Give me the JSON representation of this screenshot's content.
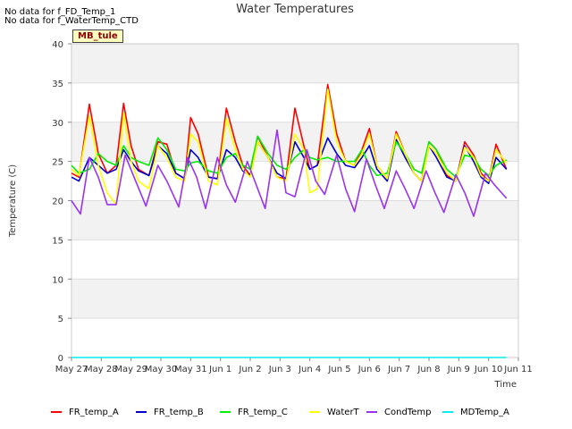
{
  "notes": [
    "No data for f_FD_Temp_1",
    "No data for f_WaterTemp_CTD"
  ],
  "badge": "MB_tule",
  "chart_data": {
    "type": "line",
    "title": "Water Temperatures",
    "xlabel": "Time",
    "ylabel": "Temperature (C)",
    "ylim": [
      0,
      40
    ],
    "xlim": [
      0,
      15
    ],
    "x_ticks": [
      0,
      1,
      2,
      3,
      4,
      5,
      6,
      7,
      8,
      9,
      10,
      11,
      12,
      13,
      14,
      15
    ],
    "x_tick_labels": [
      "May 27",
      "May 28",
      "May 29",
      "May 30",
      "May 31",
      "Jun 1",
      "Jun 2",
      "Jun 3",
      "Jun 4",
      "Jun 5",
      "Jun 6",
      "Jun 7",
      "Jun 8",
      "Jun 9",
      "Jun 10",
      "Jun 11"
    ],
    "y_ticks": [
      0,
      5,
      10,
      15,
      20,
      25,
      30,
      35,
      40
    ],
    "grid": true,
    "legend_position": "bottom",
    "x_unit": "days since May 27",
    "series": [
      {
        "name": "FR_temp_A",
        "color": "#ff0000",
        "x": [
          0.0,
          0.25,
          0.6,
          0.9,
          1.2,
          1.5,
          1.75,
          2.0,
          2.25,
          2.6,
          2.9,
          3.2,
          3.5,
          3.8,
          4.0,
          4.25,
          4.6,
          4.9,
          5.2,
          5.5,
          5.75,
          6.0,
          6.25,
          6.6,
          6.9,
          7.2,
          7.5,
          7.8,
          8.0,
          8.25,
          8.6,
          8.9,
          9.2,
          9.5,
          9.75,
          10.0,
          10.25,
          10.6,
          10.9,
          11.2,
          11.5,
          11.75,
          12.0,
          12.25,
          12.6,
          12.9,
          13.2,
          13.5,
          13.75,
          14.0,
          14.25,
          14.6
        ],
        "y": [
          23.5,
          23.0,
          32.3,
          26.0,
          23.5,
          24.5,
          32.4,
          27.0,
          24.0,
          23.2,
          27.5,
          27.2,
          23.5,
          22.8,
          30.6,
          28.5,
          23.0,
          22.8,
          31.8,
          27.5,
          24.5,
          23.2,
          28.2,
          25.5,
          23.0,
          22.8,
          31.8,
          27.0,
          24.0,
          24.5,
          34.8,
          28.5,
          25.0,
          24.5,
          26.5,
          29.2,
          24.5,
          22.8,
          28.8,
          26.0,
          23.5,
          22.5,
          27.5,
          26.5,
          23.2,
          22.5,
          27.5,
          25.8,
          23.5,
          22.5,
          27.2,
          24.0
        ]
      },
      {
        "name": "FR_temp_B",
        "color": "#0000cc",
        "x": [
          0.0,
          0.25,
          0.6,
          0.9,
          1.2,
          1.5,
          1.75,
          2.0,
          2.25,
          2.6,
          2.9,
          3.2,
          3.5,
          3.8,
          4.0,
          4.25,
          4.6,
          4.9,
          5.2,
          5.5,
          5.75,
          6.0,
          6.25,
          6.6,
          6.9,
          7.2,
          7.5,
          7.8,
          8.0,
          8.25,
          8.6,
          8.9,
          9.2,
          9.5,
          9.75,
          10.0,
          10.25,
          10.6,
          10.9,
          11.2,
          11.5,
          11.75,
          12.0,
          12.25,
          12.6,
          12.9,
          13.2,
          13.5,
          13.75,
          14.0,
          14.25,
          14.6
        ],
        "y": [
          23.0,
          22.5,
          25.5,
          24.5,
          23.5,
          24.0,
          26.5,
          25.0,
          23.8,
          23.2,
          27.0,
          26.0,
          23.5,
          22.8,
          26.5,
          25.5,
          23.0,
          22.8,
          26.5,
          25.5,
          23.8,
          23.2,
          27.5,
          25.5,
          23.5,
          22.8,
          27.5,
          25.5,
          24.0,
          24.5,
          28.0,
          26.0,
          24.5,
          24.2,
          25.5,
          27.0,
          24.0,
          22.5,
          27.8,
          25.5,
          23.5,
          22.5,
          27.0,
          25.5,
          23.0,
          22.5,
          27.0,
          25.0,
          23.0,
          22.2,
          25.5,
          24.0
        ]
      },
      {
        "name": "FR_temp_C",
        "color": "#00ee00",
        "x": [
          0.0,
          0.25,
          0.6,
          0.9,
          1.2,
          1.5,
          1.75,
          2.0,
          2.25,
          2.6,
          2.9,
          3.2,
          3.5,
          3.8,
          4.0,
          4.25,
          4.6,
          4.9,
          5.2,
          5.5,
          5.75,
          6.0,
          6.25,
          6.6,
          6.9,
          7.2,
          7.5,
          7.8,
          8.0,
          8.25,
          8.6,
          8.9,
          9.2,
          9.5,
          9.75,
          10.0,
          10.25,
          10.6,
          10.9,
          11.2,
          11.5,
          11.75,
          12.0,
          12.25,
          12.6,
          12.9,
          13.2,
          13.5,
          13.75,
          14.0,
          14.25,
          14.6
        ],
        "y": [
          24.5,
          23.5,
          24.0,
          26.0,
          25.0,
          24.5,
          27.0,
          25.5,
          25.0,
          24.5,
          28.0,
          26.5,
          24.0,
          23.8,
          24.8,
          25.0,
          23.8,
          23.5,
          25.5,
          26.0,
          24.5,
          24.0,
          28.2,
          26.0,
          24.5,
          24.0,
          25.5,
          26.5,
          25.5,
          25.2,
          25.5,
          25.0,
          25.0,
          25.0,
          26.5,
          24.5,
          23.2,
          23.5,
          27.5,
          26.0,
          24.0,
          23.5,
          27.5,
          26.5,
          24.0,
          23.0,
          25.8,
          25.5,
          24.0,
          23.2,
          24.5,
          25.2
        ]
      },
      {
        "name": "WaterT",
        "color": "#ffff00",
        "x": [
          0.0,
          0.25,
          0.6,
          0.9,
          1.2,
          1.5,
          1.75,
          2.0,
          2.25,
          2.6,
          2.9,
          3.2,
          3.5,
          3.8,
          4.0,
          4.25,
          4.6,
          4.9,
          5.2,
          5.5,
          5.75,
          6.0,
          6.25,
          6.6,
          6.9,
          7.2,
          7.5,
          7.8,
          8.0,
          8.25,
          8.6,
          8.9,
          9.2,
          9.5,
          9.75,
          10.0,
          10.25,
          10.6,
          10.9,
          11.2,
          11.5,
          11.75,
          12.0,
          12.25,
          12.6,
          12.9,
          13.2,
          13.5,
          13.75,
          14.0,
          14.25,
          14.6
        ],
        "y": [
          24.0,
          23.2,
          30.8,
          24.5,
          21.0,
          19.5,
          31.2,
          25.0,
          22.5,
          21.5,
          27.0,
          25.5,
          23.0,
          22.5,
          28.5,
          27.5,
          22.5,
          22.0,
          30.5,
          26.5,
          24.0,
          23.0,
          27.5,
          25.5,
          23.0,
          22.5,
          28.5,
          26.5,
          21.0,
          21.5,
          34.2,
          27.5,
          25.0,
          24.5,
          26.0,
          28.5,
          24.5,
          22.8,
          28.5,
          26.0,
          23.5,
          22.5,
          27.0,
          26.0,
          23.5,
          22.5,
          26.8,
          25.5,
          23.2,
          22.5,
          26.5,
          24.8
        ]
      },
      {
        "name": "CondTemp",
        "color": "#9933ee",
        "x": [
          0.0,
          0.3,
          0.6,
          0.9,
          1.2,
          1.5,
          1.8,
          2.1,
          2.5,
          2.9,
          3.2,
          3.6,
          3.9,
          4.2,
          4.5,
          4.9,
          5.2,
          5.5,
          5.9,
          6.2,
          6.5,
          6.9,
          7.2,
          7.5,
          7.9,
          8.2,
          8.5,
          8.9,
          9.2,
          9.5,
          9.9,
          10.2,
          10.5,
          10.9,
          11.2,
          11.5,
          11.9,
          12.2,
          12.5,
          12.9,
          13.2,
          13.5,
          13.9,
          14.2,
          14.6
        ],
        "y": [
          20.0,
          18.3,
          25.5,
          23.0,
          19.5,
          19.5,
          25.8,
          23.0,
          19.3,
          24.5,
          22.5,
          19.2,
          25.5,
          23.0,
          19.0,
          25.5,
          22.0,
          19.8,
          25.0,
          22.0,
          19.0,
          29.0,
          21.0,
          20.5,
          26.5,
          22.5,
          20.8,
          25.8,
          21.5,
          18.6,
          25.3,
          22.0,
          19.0,
          23.8,
          21.5,
          19.0,
          23.8,
          21.0,
          18.5,
          23.3,
          21.0,
          18.0,
          23.5,
          22.0,
          20.3
        ]
      },
      {
        "name": "MDTemp_A",
        "color": "#00eeee",
        "x": [
          0.0,
          14.6
        ],
        "y": [
          0.0,
          0.0
        ]
      }
    ]
  }
}
